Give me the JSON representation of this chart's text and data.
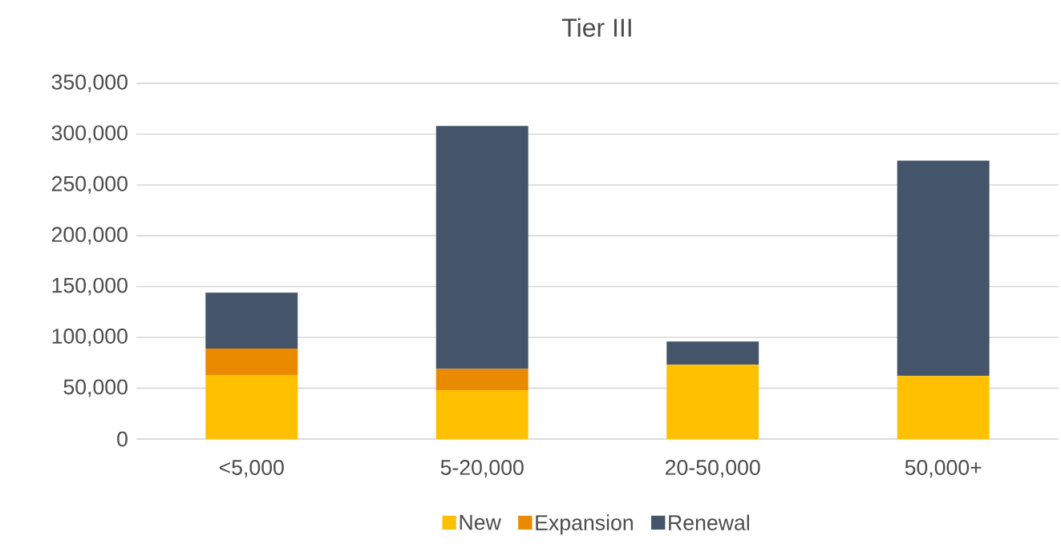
{
  "chart_data": {
    "type": "bar",
    "title": "Tier III",
    "stacked": true,
    "categories": [
      "<5,000",
      "5-20,000",
      "20-50,000",
      "50,000+"
    ],
    "series": [
      {
        "name": "New",
        "color": "#ffc000",
        "values": [
          63000,
          48000,
          73000,
          62000
        ]
      },
      {
        "name": "Expansion",
        "color": "#ea8a00",
        "values": [
          26000,
          21000,
          0,
          0
        ]
      },
      {
        "name": "Renewal",
        "color": "#44546a",
        "values": [
          55000,
          239000,
          23000,
          212000
        ]
      }
    ],
    "ylim": [
      0,
      350000
    ],
    "yticks": [
      {
        "value": 0,
        "label": "0"
      },
      {
        "value": 50000,
        "label": "50,000"
      },
      {
        "value": 100000,
        "label": "100,000"
      },
      {
        "value": 150000,
        "label": "150,000"
      },
      {
        "value": 200000,
        "label": "200,000"
      },
      {
        "value": 250000,
        "label": "250,000"
      },
      {
        "value": 300000,
        "label": "300,000"
      },
      {
        "value": 350000,
        "label": "350,000"
      }
    ],
    "grid": "y",
    "legend": "bottom"
  }
}
